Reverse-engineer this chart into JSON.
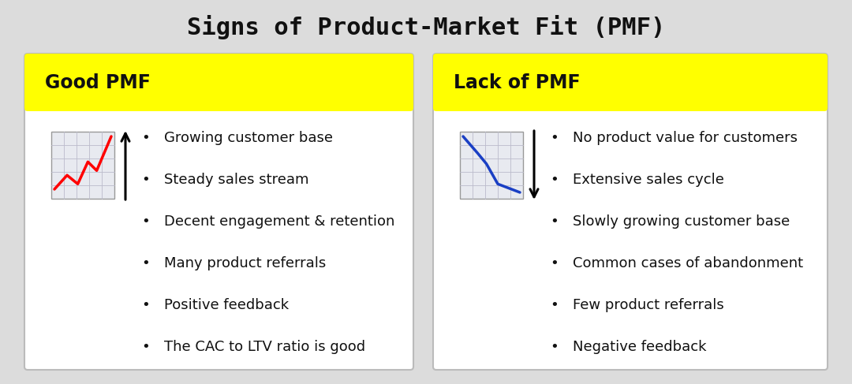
{
  "title": "Signs of Product-Market Fit (PMF)",
  "title_fontsize": 22,
  "title_font": "monospace",
  "bg_color": "#dcdcdc",
  "card_bg": "#ffffff",
  "header_bg": "#ffff00",
  "card_border": "#bbbbbb",
  "left_header": "Good PMF",
  "right_header": "Lack of PMF",
  "header_fontsize": 17,
  "left_items": [
    "Growing customer base",
    "Steady sales stream",
    "Decent engagement & retention",
    "Many product referrals",
    "Positive feedback",
    "The CAC to LTV ratio is good"
  ],
  "right_items": [
    "No product value for customers",
    "Extensive sales cycle",
    "Slowly growing customer base",
    "Common cases of abandonment",
    "Few product referrals",
    "Negative feedback"
  ],
  "item_fontsize": 13,
  "item_font": "DejaVu Sans"
}
